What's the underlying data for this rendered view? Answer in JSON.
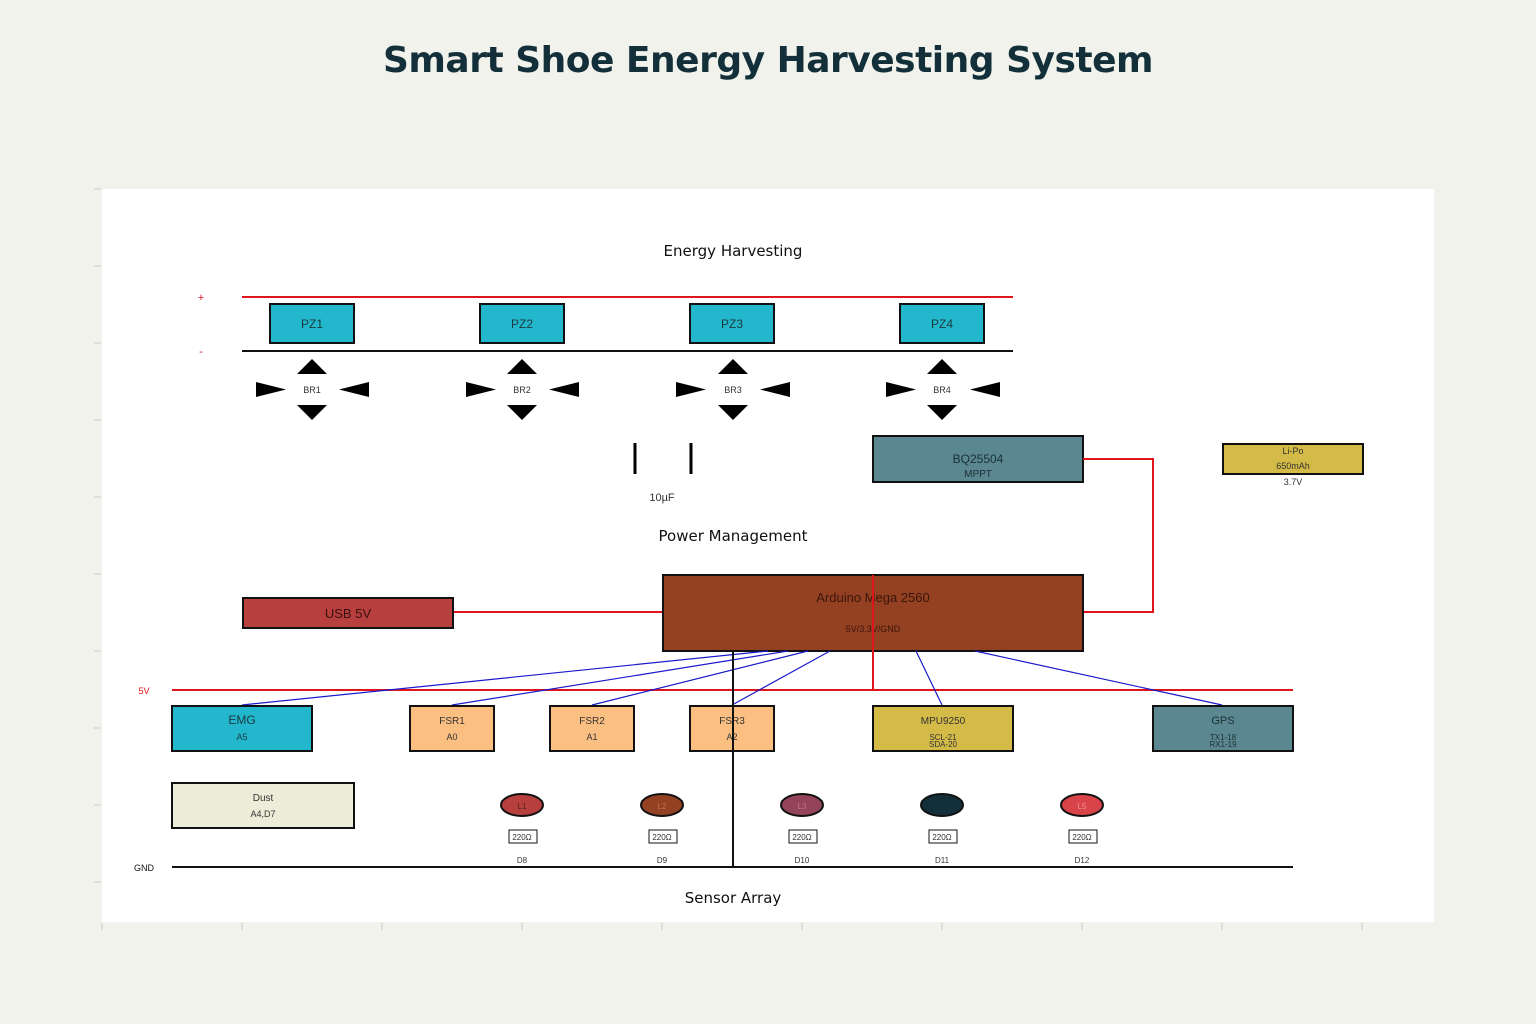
{
  "title": "Smart Shoe Energy Harvesting System",
  "colors": {
    "background": "#f2f2ec",
    "panel": "#ffffff",
    "red_wire": "#e0141b",
    "blue_wire": "#1a1acc",
    "piezo": "#22b7cc",
    "bq": "#5b8790",
    "lipo": "#d4bb48",
    "usb": "#b73f3e",
    "arduino": "#934023",
    "emg": "#22b7cc",
    "fsr": "#fbbf82",
    "mpu": "#d4bb48",
    "gps": "#5b8790",
    "dust": "#ececd8"
  },
  "sections": {
    "energy": "Energy Harvesting",
    "power": "Power Management",
    "sensor": "Sensor Array"
  },
  "rails": {
    "plus": "+",
    "minus": "-",
    "v5": "5V",
    "gnd": "GND"
  },
  "piezos": [
    "PZ1",
    "PZ2",
    "PZ3",
    "PZ4"
  ],
  "bridges": [
    "BR1",
    "BR2",
    "BR3",
    "BR4"
  ],
  "capacitor": "10µF",
  "bq": {
    "name": "BQ25504",
    "sub": "MPPT"
  },
  "lipo": {
    "name": "Li-Po",
    "capacity": "650mAh",
    "voltage": "3.7V"
  },
  "usb": "USB 5V",
  "arduino": {
    "name": "Arduino Mega 2560",
    "sub": "5V/3.3V/GND"
  },
  "sensors": {
    "emg": {
      "name": "EMG",
      "pin": "A5"
    },
    "fsr1": {
      "name": "FSR1",
      "pin": "A0"
    },
    "fsr2": {
      "name": "FSR2",
      "pin": "A1"
    },
    "fsr3": {
      "name": "FSR3",
      "pin": "A2"
    },
    "mpu": {
      "name": "MPU9250",
      "pin1": "SCL-21",
      "pin2": "SDA-20"
    },
    "gps": {
      "name": "GPS",
      "pin1": "TX1-18",
      "pin2": "RX1-19"
    },
    "dust": {
      "name": "Dust",
      "pin": "A4,D7"
    }
  },
  "leds": [
    {
      "label": "L1",
      "resistor": "220Ω",
      "pin": "D8",
      "color": "#b73f3e"
    },
    {
      "label": "L2",
      "resistor": "220Ω",
      "pin": "D9",
      "color": "#934023"
    },
    {
      "label": "L3",
      "resistor": "220Ω",
      "pin": "D10",
      "color": "#93445a"
    },
    {
      "label": "L4",
      "resistor": "220Ω",
      "pin": "D11",
      "color": "#13303a"
    },
    {
      "label": "L5",
      "resistor": "220Ω",
      "pin": "D12",
      "color": "#d9444a"
    }
  ]
}
